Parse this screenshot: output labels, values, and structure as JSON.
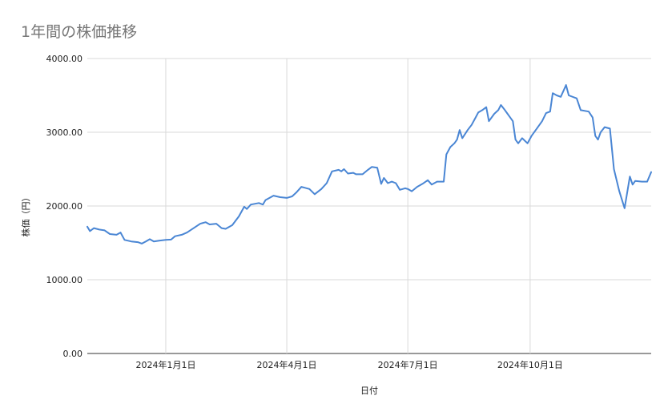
{
  "chart_data": {
    "type": "line",
    "title": "1年間の株価推移",
    "xlabel": "日付",
    "ylabel": "株価（円）",
    "ylim": [
      0,
      4000
    ],
    "yticks": [
      "0.00",
      "1000.00",
      "2000.00",
      "3000.00",
      "4000.00"
    ],
    "xlim": [
      "2023-11-03",
      "2024-12-31"
    ],
    "xticks": [
      {
        "date": "2024-01-01",
        "label": "2024年1月1日"
      },
      {
        "date": "2024-04-01",
        "label": "2024年4月1日"
      },
      {
        "date": "2024-07-01",
        "label": "2024年7月1日"
      },
      {
        "date": "2024-10-01",
        "label": "2024年10月1日"
      }
    ],
    "grid": true,
    "color": "#4a86d4",
    "series": [
      {
        "points": [
          [
            "2023-11-03",
            1720
          ],
          [
            "2023-11-05",
            1660
          ],
          [
            "2023-11-08",
            1700
          ],
          [
            "2023-11-12",
            1680
          ],
          [
            "2023-11-16",
            1670
          ],
          [
            "2023-11-20",
            1620
          ],
          [
            "2023-11-25",
            1610
          ],
          [
            "2023-11-28",
            1640
          ],
          [
            "2023-12-01",
            1540
          ],
          [
            "2023-12-06",
            1520
          ],
          [
            "2023-12-11",
            1510
          ],
          [
            "2023-12-14",
            1490
          ],
          [
            "2023-12-17",
            1520
          ],
          [
            "2023-12-20",
            1550
          ],
          [
            "2023-12-23",
            1520
          ],
          [
            "2023-12-27",
            1530
          ],
          [
            "2024-01-01",
            1540
          ],
          [
            "2024-01-05",
            1545
          ],
          [
            "2024-01-08",
            1590
          ],
          [
            "2024-01-13",
            1610
          ],
          [
            "2024-01-17",
            1640
          ],
          [
            "2024-01-22",
            1700
          ],
          [
            "2024-01-27",
            1760
          ],
          [
            "2024-01-31",
            1780
          ],
          [
            "2024-02-03",
            1750
          ],
          [
            "2024-02-08",
            1760
          ],
          [
            "2024-02-12",
            1700
          ],
          [
            "2024-02-15",
            1690
          ],
          [
            "2024-02-20",
            1740
          ],
          [
            "2024-02-25",
            1860
          ],
          [
            "2024-02-29",
            1990
          ],
          [
            "2024-03-02",
            1960
          ],
          [
            "2024-03-05",
            2020
          ],
          [
            "2024-03-11",
            2040
          ],
          [
            "2024-03-14",
            2020
          ],
          [
            "2024-03-16",
            2080
          ],
          [
            "2024-03-22",
            2140
          ],
          [
            "2024-03-27",
            2120
          ],
          [
            "2024-04-01",
            2110
          ],
          [
            "2024-04-05",
            2130
          ],
          [
            "2024-04-08",
            2180
          ],
          [
            "2024-04-12",
            2260
          ],
          [
            "2024-04-18",
            2230
          ],
          [
            "2024-04-22",
            2160
          ],
          [
            "2024-04-27",
            2230
          ],
          [
            "2024-05-01",
            2310
          ],
          [
            "2024-05-05",
            2470
          ],
          [
            "2024-05-10",
            2490
          ],
          [
            "2024-05-12",
            2470
          ],
          [
            "2024-05-14",
            2500
          ],
          [
            "2024-05-17",
            2440
          ],
          [
            "2024-05-21",
            2450
          ],
          [
            "2024-05-23",
            2430
          ],
          [
            "2024-05-28",
            2430
          ],
          [
            "2024-06-01",
            2490
          ],
          [
            "2024-06-04",
            2530
          ],
          [
            "2024-06-08",
            2520
          ],
          [
            "2024-06-11",
            2300
          ],
          [
            "2024-06-13",
            2380
          ],
          [
            "2024-06-16",
            2310
          ],
          [
            "2024-06-19",
            2330
          ],
          [
            "2024-06-22",
            2310
          ],
          [
            "2024-06-25",
            2220
          ],
          [
            "2024-06-29",
            2240
          ],
          [
            "2024-07-01",
            2230
          ],
          [
            "2024-07-04",
            2200
          ],
          [
            "2024-07-08",
            2260
          ],
          [
            "2024-07-12",
            2300
          ],
          [
            "2024-07-16",
            2350
          ],
          [
            "2024-07-19",
            2290
          ],
          [
            "2024-07-23",
            2330
          ],
          [
            "2024-07-28",
            2330
          ],
          [
            "2024-07-30",
            2700
          ],
          [
            "2024-08-02",
            2800
          ],
          [
            "2024-08-05",
            2850
          ],
          [
            "2024-08-07",
            2900
          ],
          [
            "2024-08-09",
            3030
          ],
          [
            "2024-08-11",
            2920
          ],
          [
            "2024-08-15",
            3030
          ],
          [
            "2024-08-18",
            3100
          ],
          [
            "2024-08-21",
            3200
          ],
          [
            "2024-08-23",
            3270
          ],
          [
            "2024-08-26",
            3300
          ],
          [
            "2024-08-29",
            3340
          ],
          [
            "2024-08-31",
            3150
          ],
          [
            "2024-09-04",
            3250
          ],
          [
            "2024-09-07",
            3300
          ],
          [
            "2024-09-09",
            3370
          ],
          [
            "2024-09-12",
            3300
          ],
          [
            "2024-09-14",
            3250
          ],
          [
            "2024-09-18",
            3150
          ],
          [
            "2024-09-20",
            2900
          ],
          [
            "2024-09-22",
            2850
          ],
          [
            "2024-09-25",
            2920
          ],
          [
            "2024-09-29",
            2850
          ],
          [
            "2024-10-02",
            2950
          ],
          [
            "2024-10-06",
            3050
          ],
          [
            "2024-10-10",
            3150
          ],
          [
            "2024-10-13",
            3260
          ],
          [
            "2024-10-16",
            3280
          ],
          [
            "2024-10-18",
            3530
          ],
          [
            "2024-10-21",
            3500
          ],
          [
            "2024-10-24",
            3480
          ],
          [
            "2024-10-27",
            3600
          ],
          [
            "2024-10-28",
            3640
          ],
          [
            "2024-10-30",
            3500
          ],
          [
            "2024-11-05",
            3460
          ],
          [
            "2024-11-08",
            3300
          ],
          [
            "2024-11-14",
            3280
          ],
          [
            "2024-11-17",
            3200
          ],
          [
            "2024-11-19",
            2950
          ],
          [
            "2024-11-21",
            2900
          ],
          [
            "2024-11-23",
            3000
          ],
          [
            "2024-11-26",
            3070
          ],
          [
            "2024-11-30",
            3050
          ],
          [
            "2024-12-03",
            2500
          ],
          [
            "2024-12-07",
            2200
          ],
          [
            "2024-12-11",
            1970
          ],
          [
            "2024-12-15",
            2400
          ],
          [
            "2024-12-17",
            2290
          ],
          [
            "2024-12-19",
            2340
          ],
          [
            "2024-12-24",
            2330
          ],
          [
            "2024-12-28",
            2330
          ],
          [
            "2024-12-31",
            2460
          ]
        ]
      }
    ]
  }
}
